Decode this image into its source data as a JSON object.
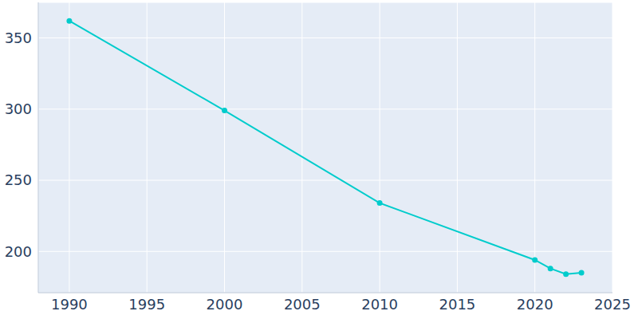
{
  "chart_data": {
    "type": "line",
    "x": [
      1990,
      2000,
      2010,
      2020,
      2021,
      2022,
      2023
    ],
    "values": [
      362,
      299,
      234,
      194,
      188,
      184,
      185
    ],
    "color": "#00cccc",
    "marker": "circle",
    "xlim": [
      1988,
      2025
    ],
    "xticks": [
      1990,
      1995,
      2000,
      2005,
      2010,
      2015,
      2020,
      2025
    ],
    "ylim": [
      171,
      375
    ],
    "yticks": [
      200,
      250,
      300,
      350
    ],
    "grid": true
  }
}
